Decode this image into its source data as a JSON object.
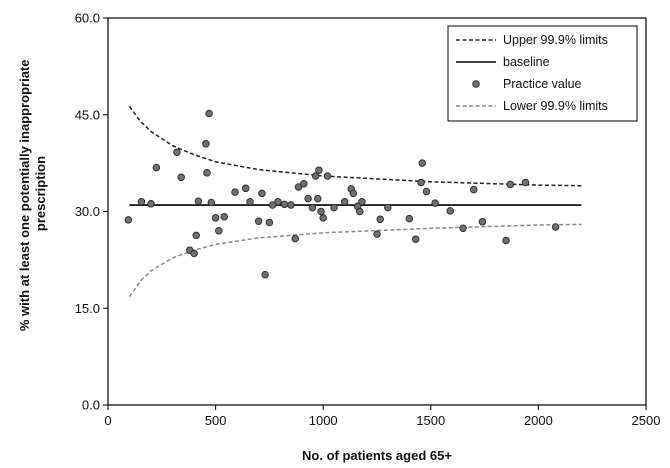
{
  "chart_data": {
    "type": "scatter",
    "title": "",
    "xlabel": "No. of  patients aged 65+",
    "ylabel_lines": [
      "% with at least one potentially inappropriate",
      "prescription"
    ],
    "xlim": [
      0,
      2500
    ],
    "ylim": [
      0,
      60
    ],
    "x_ticks": [
      0,
      500,
      1000,
      1500,
      2000,
      2500
    ],
    "y_ticks": [
      0.0,
      15.0,
      30.0,
      45.0,
      60.0
    ],
    "x_tick_labels": [
      "0",
      "500",
      "1000",
      "1500",
      "2000",
      "2500"
    ],
    "y_tick_labels": [
      "0.0",
      "15.0",
      "30.0",
      "45.0",
      "60.0"
    ],
    "grid": false,
    "legend_position": "top-right",
    "legend": {
      "upper": "Upper 99.9% limits",
      "baseline": "baseline",
      "practice": "Practice value",
      "lower": "Lower 99.9% limits"
    },
    "baseline": {
      "value": 31.0,
      "x_range": [
        100,
        2200
      ]
    },
    "control_limits": {
      "x_range": [
        100,
        2200
      ],
      "upper": [
        [
          100,
          46.3
        ],
        [
          150,
          44.0
        ],
        [
          200,
          42.4
        ],
        [
          300,
          40.2
        ],
        [
          400,
          38.8
        ],
        [
          500,
          37.7
        ],
        [
          700,
          36.5
        ],
        [
          1000,
          35.5
        ],
        [
          1500,
          34.6
        ],
        [
          2000,
          34.1
        ],
        [
          2200,
          34.0
        ]
      ],
      "lower": [
        [
          100,
          16.8
        ],
        [
          150,
          19.2
        ],
        [
          200,
          20.8
        ],
        [
          300,
          22.8
        ],
        [
          400,
          24.0
        ],
        [
          500,
          24.9
        ],
        [
          700,
          25.9
        ],
        [
          1000,
          26.7
        ],
        [
          1500,
          27.4
        ],
        [
          2000,
          27.9
        ],
        [
          2200,
          28.0
        ]
      ]
    },
    "series": [
      {
        "name": "Practice value",
        "points": [
          [
            95,
            28.7
          ],
          [
            155,
            31.5
          ],
          [
            200,
            31.2
          ],
          [
            225,
            36.8
          ],
          [
            320,
            39.2
          ],
          [
            340,
            35.3
          ],
          [
            380,
            24.0
          ],
          [
            400,
            23.5
          ],
          [
            410,
            26.3
          ],
          [
            420,
            31.6
          ],
          [
            455,
            40.5
          ],
          [
            460,
            36.0
          ],
          [
            470,
            45.2
          ],
          [
            480,
            31.4
          ],
          [
            500,
            29.0
          ],
          [
            515,
            27.0
          ],
          [
            540,
            29.2
          ],
          [
            590,
            33.0
          ],
          [
            640,
            33.6
          ],
          [
            660,
            31.5
          ],
          [
            700,
            28.5
          ],
          [
            715,
            32.8
          ],
          [
            730,
            20.2
          ],
          [
            750,
            28.3
          ],
          [
            765,
            31.0
          ],
          [
            790,
            31.5
          ],
          [
            820,
            31.1
          ],
          [
            850,
            31.0
          ],
          [
            870,
            25.8
          ],
          [
            885,
            33.8
          ],
          [
            910,
            34.3
          ],
          [
            930,
            32.0
          ],
          [
            950,
            30.6
          ],
          [
            965,
            35.5
          ],
          [
            975,
            32.0
          ],
          [
            980,
            36.4
          ],
          [
            990,
            30.0
          ],
          [
            1000,
            29.0
          ],
          [
            1020,
            35.5
          ],
          [
            1050,
            30.6
          ],
          [
            1100,
            31.5
          ],
          [
            1130,
            33.5
          ],
          [
            1140,
            32.8
          ],
          [
            1160,
            30.8
          ],
          [
            1170,
            30.0
          ],
          [
            1180,
            31.5
          ],
          [
            1250,
            26.5
          ],
          [
            1265,
            28.8
          ],
          [
            1300,
            30.6
          ],
          [
            1400,
            28.9
          ],
          [
            1430,
            25.7
          ],
          [
            1455,
            34.5
          ],
          [
            1460,
            37.5
          ],
          [
            1480,
            33.1
          ],
          [
            1520,
            31.3
          ],
          [
            1590,
            30.1
          ],
          [
            1650,
            27.4
          ],
          [
            1700,
            33.4
          ],
          [
            1740,
            28.4
          ],
          [
            1850,
            25.5
          ],
          [
            1870,
            34.2
          ],
          [
            1940,
            34.5
          ],
          [
            2080,
            27.6
          ]
        ]
      }
    ]
  }
}
